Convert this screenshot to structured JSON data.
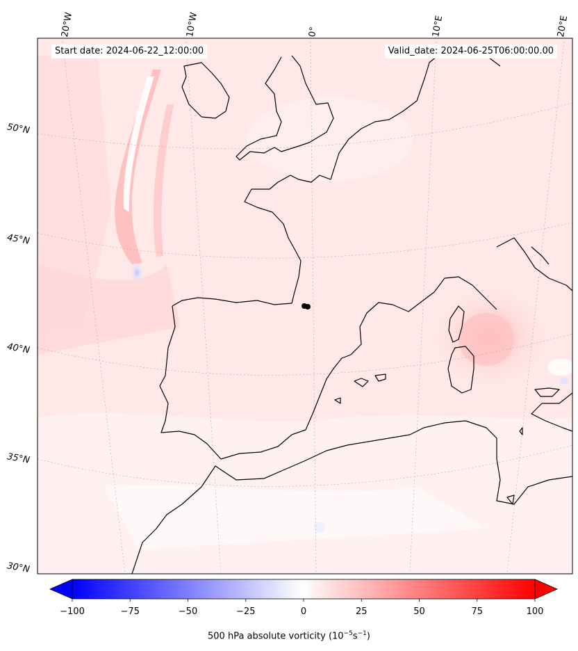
{
  "header": {
    "start_date": "Start date: 2024-06-22_12:00:00",
    "valid_date": "Valid_date: 2024-06-25T06:00:00.00"
  },
  "longitude_labels": [
    "20°W",
    "10°W",
    "0°",
    "10°E",
    "20°E"
  ],
  "latitude_labels": [
    "50°N",
    "45°N",
    "40°N",
    "35°N",
    "30°N"
  ],
  "colorbar": {
    "title_prefix": "500 hPa absolute vorticity (10",
    "title_exp1": "−5",
    "title_mid": "s",
    "title_exp2": "−1",
    "title_suffix": ")",
    "ticks": [
      "−100",
      "−75",
      "−50",
      "−25",
      "0",
      "25",
      "50",
      "75",
      "100"
    ],
    "min": -100,
    "max": 100,
    "colormap": "bwr",
    "extend": "both"
  },
  "colors": {
    "negative_end": "#0000ff",
    "zero": "#ffffff",
    "positive_end": "#ff0000",
    "coastline": "#000000"
  }
}
